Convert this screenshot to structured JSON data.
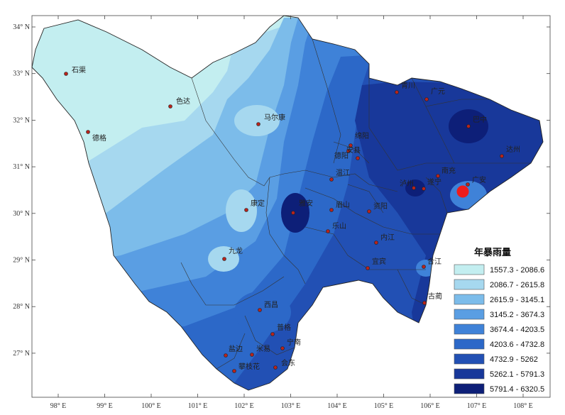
{
  "map": {
    "legend_title": "年暴雨量",
    "legend": [
      {
        "label": "1557.3 - 2086.6",
        "color": "#c3eef0"
      },
      {
        "label": "2086.7 - 2615.8",
        "color": "#a6d8ef"
      },
      {
        "label": "2615.9 - 3145.1",
        "color": "#7cbcea"
      },
      {
        "label": "3145.2 - 3674.3",
        "color": "#5a9ee3"
      },
      {
        "label": "3674.4 - 4203.5",
        "color": "#3f82d8"
      },
      {
        "label": "4203.6 - 4732.8",
        "color": "#2c68c8"
      },
      {
        "label": "4732.9 - 5262",
        "color": "#2250b4"
      },
      {
        "label": "5262.1 - 5791.3",
        "color": "#18389a"
      },
      {
        "label": "5791.4 - 6320.5",
        "color": "#0d1f78"
      }
    ],
    "x_ticks": [
      "98° E",
      "99° E",
      "100° E",
      "101° E",
      "102° E",
      "103° E",
      "104° E",
      "105° E",
      "106° E",
      "107° E",
      "108° E"
    ],
    "y_ticks": [
      "34° N",
      "33° N",
      "32° N",
      "31° N",
      "30° N",
      "29° N",
      "28° N",
      "27° N"
    ],
    "cities": [
      {
        "name": "石渠"
      },
      {
        "name": "色达"
      },
      {
        "name": "德格"
      },
      {
        "name": "马尔康"
      },
      {
        "name": "康定"
      },
      {
        "name": "九龙"
      },
      {
        "name": "西昌"
      },
      {
        "name": "普格"
      },
      {
        "name": "宁南"
      },
      {
        "name": "盐边"
      },
      {
        "name": "米易"
      },
      {
        "name": "攀枝花"
      },
      {
        "name": "会东"
      },
      {
        "name": "雅安"
      },
      {
        "name": "眉山"
      },
      {
        "name": "乐山"
      },
      {
        "name": "温江"
      },
      {
        "name": "绵阳"
      },
      {
        "name": "德阳"
      },
      {
        "name": "资阳"
      },
      {
        "name": "内江"
      },
      {
        "name": "宜宾"
      },
      {
        "name": "泸州"
      },
      {
        "name": "合江"
      },
      {
        "name": "古蔺"
      },
      {
        "name": "遂宁"
      },
      {
        "name": "南充"
      },
      {
        "name": "广安"
      },
      {
        "name": "巴中"
      },
      {
        "name": "达州"
      },
      {
        "name": "广元"
      },
      {
        "name": "青川"
      },
      {
        "name": "安县"
      }
    ]
  }
}
